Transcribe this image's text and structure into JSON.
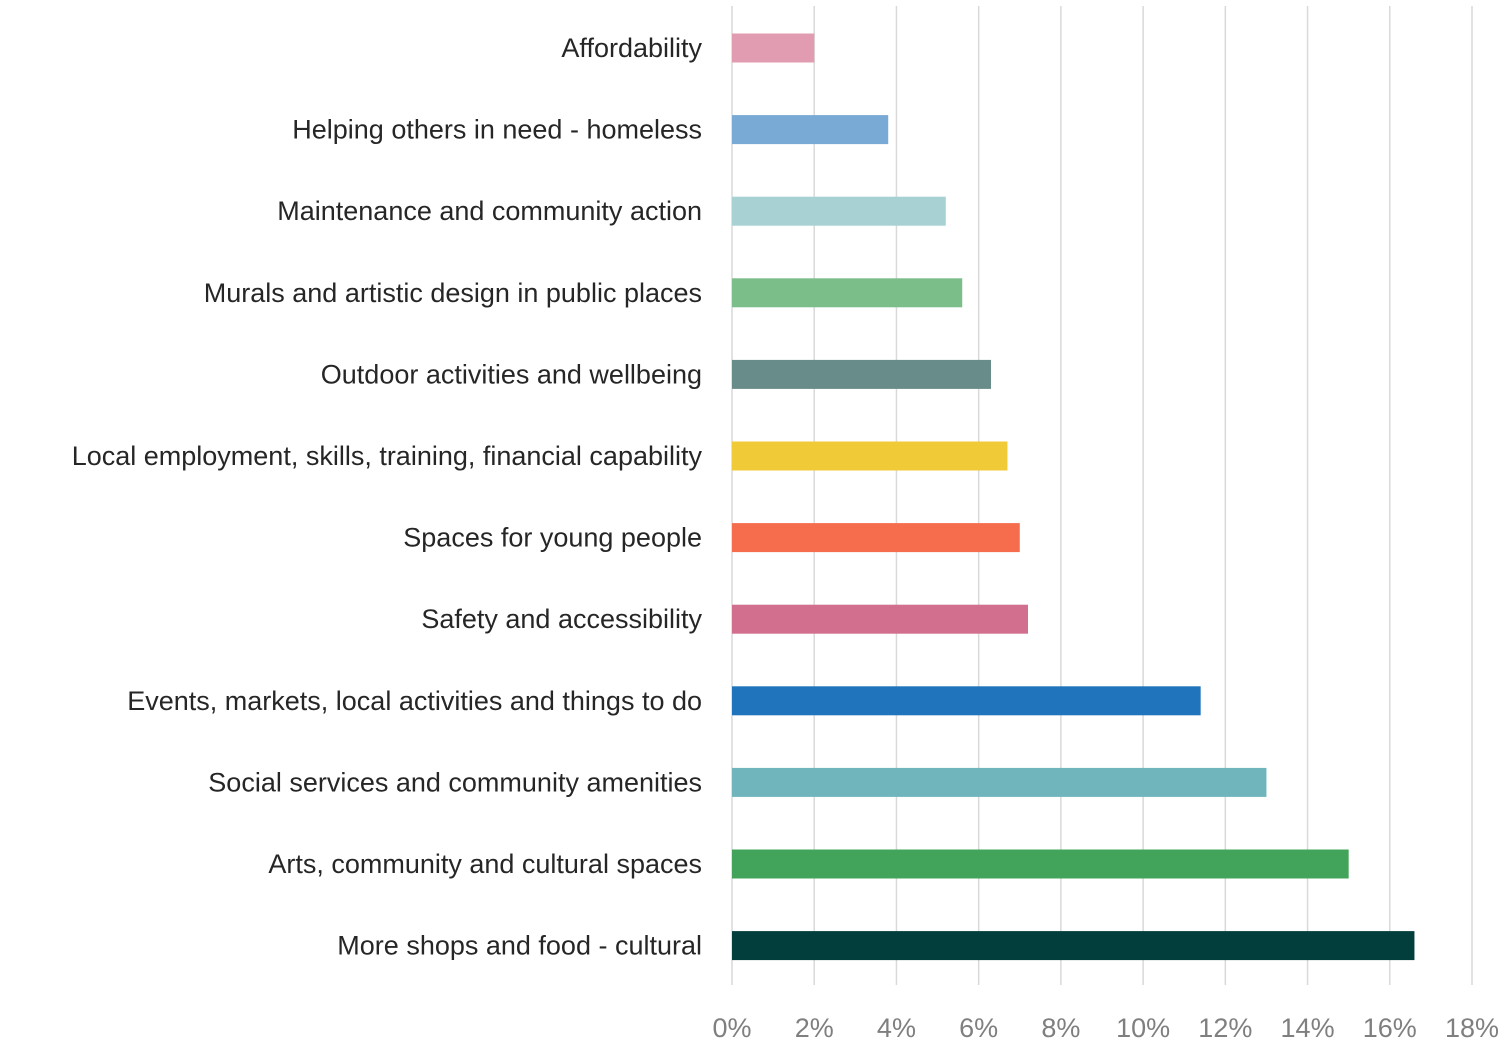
{
  "chart_data": {
    "type": "bar",
    "orientation": "horizontal",
    "categories": [
      "Affordability",
      "Helping others in need - homeless",
      "Maintenance and community action",
      "Murals and artistic design in public places",
      "Outdoor activities and wellbeing",
      "Local employment, skills, training, financial capability",
      "Spaces for young people",
      "Safety and accessibility",
      "Events, markets, local activities and things to do",
      "Social services and community amenities",
      "Arts, community and cultural spaces",
      "More shops and food - cultural"
    ],
    "values": [
      2.0,
      3.8,
      5.2,
      5.6,
      6.3,
      6.7,
      7.0,
      7.2,
      11.4,
      13.0,
      15.0,
      16.6
    ],
    "colors": [
      "#e19cb1",
      "#79aad5",
      "#a8d1d3",
      "#7bbe8a",
      "#688c8a",
      "#f1ca37",
      "#f56d4c",
      "#d36f8e",
      "#2074bc",
      "#6fb5bb",
      "#42a45a",
      "#023e3b"
    ],
    "xlim": [
      0,
      18
    ],
    "x_ticks": [
      0,
      2,
      4,
      6,
      8,
      10,
      12,
      14,
      16,
      18
    ],
    "x_tick_labels": [
      "0%",
      "2%",
      "4%",
      "6%",
      "8%",
      "10%",
      "12%",
      "14%",
      "16%",
      "18%"
    ],
    "grid": true,
    "title": "",
    "xlabel": "",
    "ylabel": ""
  }
}
